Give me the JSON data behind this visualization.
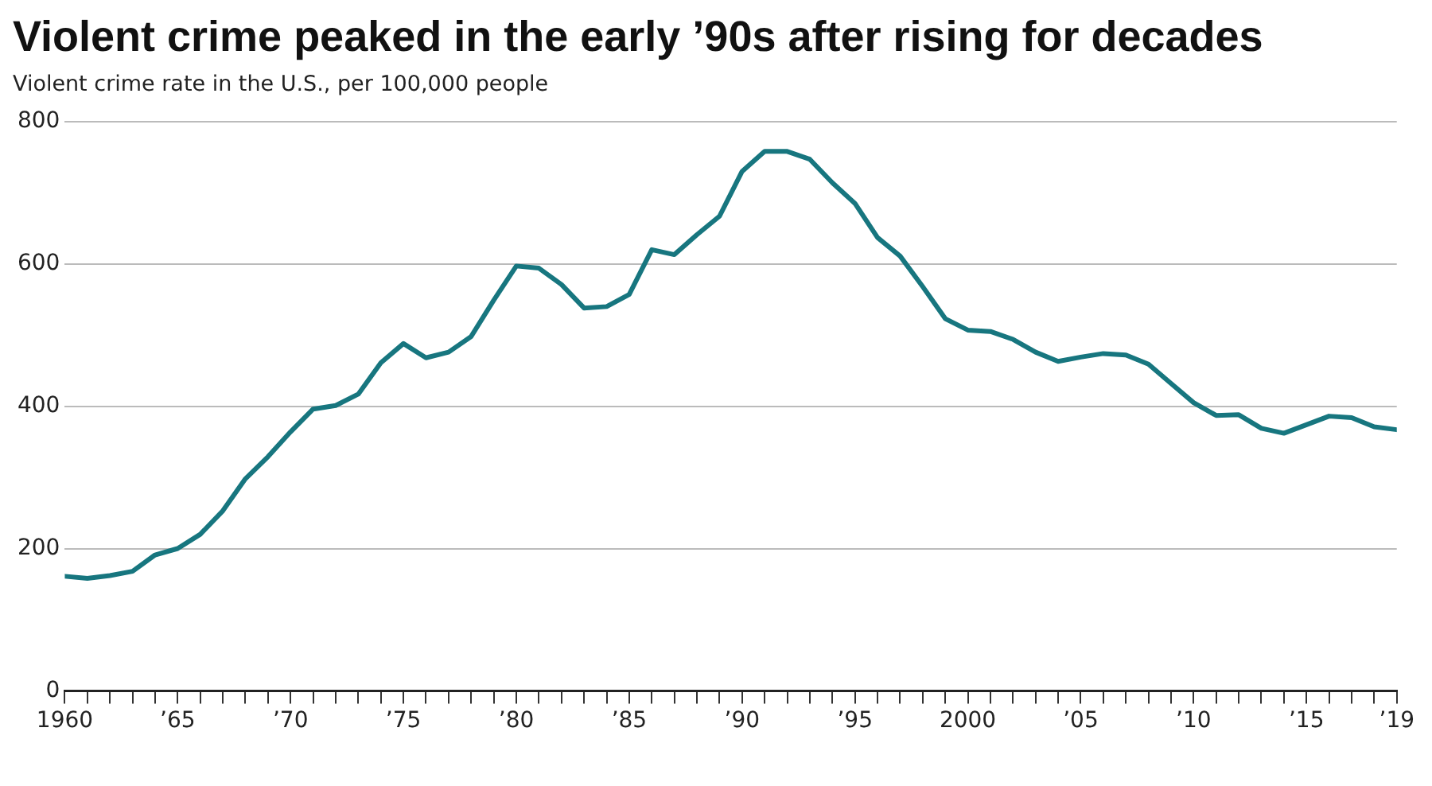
{
  "chart_data": {
    "type": "line",
    "title": "Violent crime peaked in the early ’90s after rising for decades",
    "subtitle": "Violent crime rate in the U.S., per 100,000 people",
    "x": [
      1960,
      1961,
      1962,
      1963,
      1964,
      1965,
      1966,
      1967,
      1968,
      1969,
      1970,
      1971,
      1972,
      1973,
      1974,
      1975,
      1976,
      1977,
      1978,
      1979,
      1980,
      1981,
      1982,
      1983,
      1984,
      1985,
      1986,
      1987,
      1988,
      1989,
      1990,
      1991,
      1992,
      1993,
      1994,
      1995,
      1996,
      1997,
      1998,
      1999,
      2000,
      2001,
      2002,
      2003,
      2004,
      2005,
      2006,
      2007,
      2008,
      2009,
      2010,
      2011,
      2012,
      2013,
      2014,
      2015,
      2016,
      2017,
      2018,
      2019
    ],
    "series": [
      {
        "color": "#17767f",
        "values": [
          161,
          158,
          162,
          168,
          191,
          200,
          220,
          253,
          298,
          329,
          364,
          396,
          401,
          417,
          461,
          488,
          468,
          476,
          498,
          549,
          597,
          594,
          571,
          538,
          540,
          557,
          620,
          613,
          641,
          667,
          730,
          758,
          758,
          747,
          714,
          685,
          637,
          611,
          568,
          523,
          507,
          505,
          494,
          476,
          463,
          469,
          474,
          472,
          459,
          432,
          405,
          387,
          388,
          369,
          362,
          374,
          386,
          384,
          371,
          367
        ]
      }
    ],
    "xlim": [
      1960,
      2019
    ],
    "xticks": [
      {
        "value": 1960,
        "label": "1960"
      },
      {
        "value": 1961,
        "label": null
      },
      {
        "value": 1962,
        "label": null
      },
      {
        "value": 1963,
        "label": null
      },
      {
        "value": 1964,
        "label": null
      },
      {
        "value": 1965,
        "label": "’65"
      },
      {
        "value": 1966,
        "label": null
      },
      {
        "value": 1967,
        "label": null
      },
      {
        "value": 1968,
        "label": null
      },
      {
        "value": 1969,
        "label": null
      },
      {
        "value": 1970,
        "label": "’70"
      },
      {
        "value": 1971,
        "label": null
      },
      {
        "value": 1972,
        "label": null
      },
      {
        "value": 1973,
        "label": null
      },
      {
        "value": 1974,
        "label": null
      },
      {
        "value": 1975,
        "label": "’75"
      },
      {
        "value": 1976,
        "label": null
      },
      {
        "value": 1977,
        "label": null
      },
      {
        "value": 1978,
        "label": null
      },
      {
        "value": 1979,
        "label": null
      },
      {
        "value": 1980,
        "label": "’80"
      },
      {
        "value": 1981,
        "label": null
      },
      {
        "value": 1982,
        "label": null
      },
      {
        "value": 1983,
        "label": null
      },
      {
        "value": 1984,
        "label": null
      },
      {
        "value": 1985,
        "label": "’85"
      },
      {
        "value": 1986,
        "label": null
      },
      {
        "value": 1987,
        "label": null
      },
      {
        "value": 1988,
        "label": null
      },
      {
        "value": 1989,
        "label": null
      },
      {
        "value": 1990,
        "label": "’90"
      },
      {
        "value": 1991,
        "label": null
      },
      {
        "value": 1992,
        "label": null
      },
      {
        "value": 1993,
        "label": null
      },
      {
        "value": 1994,
        "label": null
      },
      {
        "value": 1995,
        "label": "’95"
      },
      {
        "value": 1996,
        "label": null
      },
      {
        "value": 1997,
        "label": null
      },
      {
        "value": 1998,
        "label": null
      },
      {
        "value": 1999,
        "label": null
      },
      {
        "value": 2000,
        "label": "2000"
      },
      {
        "value": 2001,
        "label": null
      },
      {
        "value": 2002,
        "label": null
      },
      {
        "value": 2003,
        "label": null
      },
      {
        "value": 2004,
        "label": null
      },
      {
        "value": 2005,
        "label": "’05"
      },
      {
        "value": 2006,
        "label": null
      },
      {
        "value": 2007,
        "label": null
      },
      {
        "value": 2008,
        "label": null
      },
      {
        "value": 2009,
        "label": null
      },
      {
        "value": 2010,
        "label": "’10"
      },
      {
        "value": 2011,
        "label": null
      },
      {
        "value": 2012,
        "label": null
      },
      {
        "value": 2013,
        "label": null
      },
      {
        "value": 2014,
        "label": null
      },
      {
        "value": 2015,
        "label": "’15"
      },
      {
        "value": 2016,
        "label": null
      },
      {
        "value": 2017,
        "label": null
      },
      {
        "value": 2018,
        "label": null
      },
      {
        "value": 2019,
        "label": "’19"
      }
    ],
    "ylim": [
      0,
      800
    ],
    "yticks": [
      0,
      200,
      400,
      600,
      800
    ],
    "grid": "y",
    "legend": false,
    "marker": "none",
    "line_style": "solid"
  }
}
